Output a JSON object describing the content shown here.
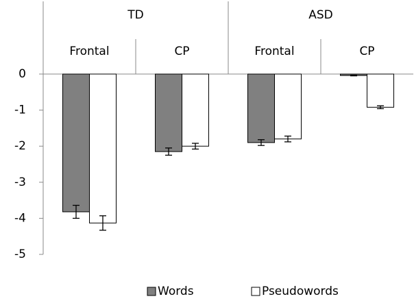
{
  "chart_data": {
    "type": "bar",
    "groups": [
      "TD",
      "ASD"
    ],
    "categories": [
      "Frontal",
      "CP",
      "Frontal",
      "CP"
    ],
    "series": [
      {
        "name": "Words",
        "color": "#808080",
        "values": [
          -3.82,
          -2.15,
          -1.9,
          -0.04
        ],
        "errors": [
          0.18,
          0.1,
          0.08,
          0.01
        ]
      },
      {
        "name": "Pseudowords",
        "color": "#ffffff",
        "values": [
          -4.13,
          -2.0,
          -1.8,
          -0.92
        ],
        "errors": [
          0.2,
          0.08,
          0.08,
          0.04
        ]
      }
    ],
    "ylim": [
      -5,
      0
    ],
    "yticks": [
      -5,
      -4,
      -3,
      -2,
      -1,
      0
    ],
    "legend": "bottom"
  }
}
